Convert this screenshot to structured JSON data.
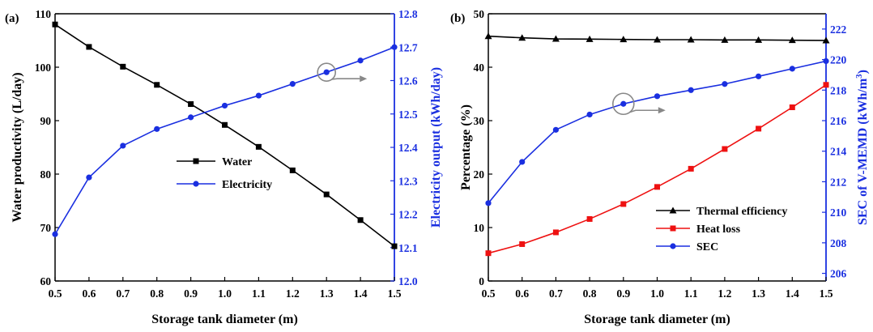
{
  "chart_data": [
    {
      "panel_label": "(a)",
      "type": "line",
      "x": [
        0.5,
        0.6,
        0.7,
        0.8,
        0.9,
        1.0,
        1.1,
        1.2,
        1.3,
        1.4,
        1.5
      ],
      "xlabel": "Storage tank diameter (m)",
      "xlim": [
        0.5,
        1.5
      ],
      "xticks": [
        "0.5",
        "0.6",
        "0.7",
        "0.8",
        "0.9",
        "1.0",
        "1.1",
        "1.2",
        "1.3",
        "1.4",
        "1.5"
      ],
      "ylabel_left": "Water productivity (L/day)",
      "ylim_left": [
        60,
        110
      ],
      "yticks_left": [
        "60",
        "70",
        "80",
        "90",
        "100",
        "110"
      ],
      "ylabel_right": "Electricity output (kWh/day)",
      "ylim_right": [
        12.0,
        12.8
      ],
      "yticks_right": [
        "12.0",
        "12.1",
        "12.2",
        "12.3",
        "12.4",
        "12.5",
        "12.6",
        "12.7",
        "12.8"
      ],
      "right_axis_color": "#1a2fe0",
      "series": [
        {
          "name": "Water",
          "axis": "left",
          "color": "#000000",
          "marker": "square",
          "values": [
            108.0,
            103.8,
            100.1,
            96.7,
            93.1,
            89.2,
            85.1,
            80.7,
            76.2,
            71.4,
            66.5
          ]
        },
        {
          "name": "Electricity",
          "axis": "right",
          "color": "#1a2fe0",
          "marker": "circle",
          "values": [
            12.14,
            12.31,
            12.405,
            12.455,
            12.49,
            12.525,
            12.555,
            12.59,
            12.625,
            12.66,
            12.7
          ]
        }
      ],
      "legend_position": "center",
      "annotation": {
        "arrow_direction": "right",
        "circle_at": [
          1.3,
          12.625
        ]
      }
    },
    {
      "panel_label": "(b)",
      "type": "line",
      "x": [
        0.5,
        0.6,
        0.7,
        0.8,
        0.9,
        1.0,
        1.1,
        1.2,
        1.3,
        1.4,
        1.5
      ],
      "xlabel": "Storage tank diameter (m)",
      "xlim": [
        0.5,
        1.5
      ],
      "xticks": [
        "0.5",
        "0.6",
        "0.7",
        "0.8",
        "0.9",
        "1.0",
        "1.1",
        "1.2",
        "1.3",
        "1.4",
        "1.5"
      ],
      "ylabel_left": "Percentage (%)",
      "ylim_left": [
        0,
        50
      ],
      "yticks_left": [
        "0",
        "10",
        "20",
        "30",
        "40",
        "50"
      ],
      "ylabel_right": "SEC of V-MEMD (kWh/m",
      "ylabel_right_superscript": "3",
      "ylabel_right_suffix": ")",
      "ylim_right": [
        205.5,
        223
      ],
      "yticks_right": [
        "206",
        "208",
        "210",
        "212",
        "214",
        "216",
        "218",
        "220",
        "222"
      ],
      "right_axis_color": "#1a2fe0",
      "series": [
        {
          "name": "Thermal efficiency",
          "axis": "left",
          "color": "#000000",
          "marker": "triangle",
          "values": [
            45.8,
            45.5,
            45.3,
            45.25,
            45.2,
            45.15,
            45.15,
            45.1,
            45.1,
            45.05,
            45.0
          ]
        },
        {
          "name": "Heat loss",
          "axis": "left",
          "color": "#ee1111",
          "marker": "square",
          "values": [
            5.2,
            6.9,
            9.1,
            11.6,
            14.4,
            17.6,
            21.0,
            24.7,
            28.5,
            32.5,
            36.7
          ]
        },
        {
          "name": "SEC",
          "axis": "right",
          "color": "#1a2fe0",
          "marker": "circle",
          "values": [
            210.6,
            213.3,
            215.4,
            216.4,
            217.1,
            217.6,
            218.0,
            218.4,
            218.9,
            219.4,
            219.9
          ]
        }
      ],
      "legend_position": "bottom-right",
      "annotation": {
        "arrow_direction": "right",
        "circle_at": [
          0.9,
          217.1
        ]
      }
    }
  ]
}
